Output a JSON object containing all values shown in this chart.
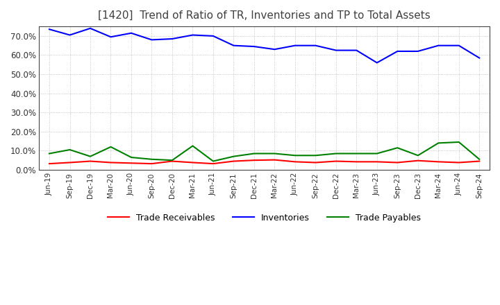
{
  "title": "[1420]  Trend of Ratio of TR, Inventories and TP to Total Assets",
  "labels": [
    "Jun-19",
    "Sep-19",
    "Dec-19",
    "Mar-20",
    "Jun-20",
    "Sep-20",
    "Dec-20",
    "Mar-21",
    "Jun-21",
    "Sep-21",
    "Dec-21",
    "Mar-22",
    "Jun-22",
    "Sep-22",
    "Dec-22",
    "Mar-23",
    "Jun-23",
    "Sep-23",
    "Dec-23",
    "Mar-24",
    "Jun-24",
    "Sep-24"
  ],
  "trade_receivables": [
    3.2,
    3.8,
    4.5,
    3.8,
    3.5,
    3.2,
    4.5,
    3.8,
    3.2,
    4.5,
    5.0,
    5.2,
    4.2,
    3.8,
    4.5,
    4.2,
    4.2,
    3.8,
    4.8,
    4.2,
    3.8,
    4.5
  ],
  "inventories": [
    73.5,
    70.5,
    74.0,
    69.5,
    71.5,
    68.0,
    68.5,
    70.5,
    70.0,
    65.0,
    64.5,
    63.0,
    65.0,
    65.0,
    62.5,
    62.5,
    56.0,
    62.0,
    62.0,
    65.0,
    65.0,
    58.5
  ],
  "trade_payables": [
    8.5,
    10.5,
    7.0,
    12.0,
    6.5,
    5.5,
    5.0,
    12.5,
    4.5,
    7.0,
    8.5,
    8.5,
    7.5,
    7.5,
    8.5,
    8.5,
    8.5,
    11.5,
    7.5,
    14.0,
    14.5,
    5.5
  ],
  "tr_color": "#ff0000",
  "inv_color": "#0000ff",
  "tp_color": "#008000",
  "ylim": [
    0,
    75
  ],
  "yticks": [
    0,
    10,
    20,
    30,
    40,
    50,
    60,
    70
  ],
  "ytick_labels": [
    "0.0%",
    "10.0%",
    "20.0%",
    "30.0%",
    "40.0%",
    "50.0%",
    "60.0%",
    "70.0%"
  ],
  "legend_tr": "Trade Receivables",
  "legend_inv": "Inventories",
  "legend_tp": "Trade Payables",
  "bg_color": "#ffffff",
  "grid_color": "#888888",
  "title_color": "#404040"
}
